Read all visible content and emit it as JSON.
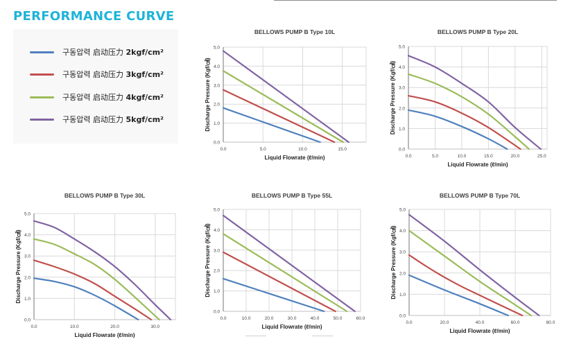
{
  "page": {
    "title": "PERFORMANCE CURVE"
  },
  "legend": {
    "items": [
      {
        "prefix": "구동압력 启动压力 ",
        "value": "2kgf/cm²",
        "color": "#4f81bd"
      },
      {
        "prefix": "구동압력 启动压力 ",
        "value": "3kgf/cm²",
        "color": "#c0504d"
      },
      {
        "prefix": "구동압력 启动压力 ",
        "value": "4kgf/cm²",
        "color": "#9bbb59"
      },
      {
        "prefix": "구동압력 启动压力 ",
        "value": "5kgf/cm²",
        "color": "#8064a2"
      }
    ]
  },
  "chart_data": [
    {
      "type": "line",
      "title": "BELLOWS PUMP B Type 10L",
      "xlabel": "Liquid Flowrate (ℓ/min)",
      "ylabel": "Discharge Pressure (Kgf/㎠)",
      "xlim": [
        0,
        18
      ],
      "ylim": [
        0,
        5
      ],
      "xticks": [
        0,
        5,
        10,
        15
      ],
      "xtick_labels": [
        "0.0",
        "5.0",
        "10.0",
        "15.0"
      ],
      "yticks": [
        0,
        1,
        2,
        3,
        4,
        5
      ],
      "ytick_labels": [
        "0.0",
        "1.0",
        "2.0",
        "3.0",
        "4.0",
        "5.0"
      ],
      "grid": true,
      "series": [
        {
          "name": "2kgf/cm²",
          "x": [
            0,
            12.2
          ],
          "y": [
            1.8,
            0
          ]
        },
        {
          "name": "3kgf/cm²",
          "x": [
            0,
            14.0
          ],
          "y": [
            2.75,
            0
          ]
        },
        {
          "name": "4kgf/cm²",
          "x": [
            0,
            15.1
          ],
          "y": [
            3.75,
            0
          ]
        },
        {
          "name": "5kgf/cm²",
          "x": [
            0,
            15.8
          ],
          "y": [
            4.8,
            0
          ]
        }
      ]
    },
    {
      "type": "line",
      "title": "BELLOWS PUMP B Type 20L",
      "xlabel": "Liquid Flowrate (ℓ/min)",
      "ylabel": "Discharge Pressure (Kgf/㎠)",
      "xlim": [
        0,
        26
      ],
      "ylim": [
        0,
        5
      ],
      "xticks": [
        0,
        5,
        10,
        15,
        20,
        25
      ],
      "xtick_labels": [
        "0.0",
        "5.0",
        "10.0",
        "15.0",
        "20.0",
        "25.0"
      ],
      "yticks": [
        0,
        1,
        2,
        3,
        4,
        5
      ],
      "ytick_labels": [
        "0.0",
        "1.0",
        "2.0",
        "3.0",
        "4.0",
        "5.0"
      ],
      "grid": true,
      "series": [
        {
          "name": "2kgf/cm²",
          "x": [
            0,
            5,
            10,
            15,
            18.5
          ],
          "y": [
            1.9,
            1.6,
            1.1,
            0.5,
            0
          ]
        },
        {
          "name": "3kgf/cm²",
          "x": [
            0,
            5,
            10,
            15,
            21
          ],
          "y": [
            2.6,
            2.3,
            1.75,
            1.05,
            0
          ]
        },
        {
          "name": "4kgf/cm²",
          "x": [
            0,
            5,
            10,
            15,
            20,
            22.6
          ],
          "y": [
            3.65,
            3.2,
            2.55,
            1.7,
            0.6,
            0
          ]
        },
        {
          "name": "5kgf/cm²",
          "x": [
            0,
            5,
            10,
            15,
            20,
            24.8
          ],
          "y": [
            4.55,
            4.0,
            3.2,
            2.3,
            1.05,
            0
          ]
        }
      ]
    },
    {
      "type": "line",
      "title": "BELLOWS PUMP B Type 30L",
      "xlabel": "Liquid Flowrate (ℓ/min)",
      "ylabel": "Discharge Pressure (Kgf/㎠)",
      "xlim": [
        0,
        35
      ],
      "ylim": [
        0,
        5
      ],
      "xticks": [
        0,
        10,
        20,
        30
      ],
      "xtick_labels": [
        "0.0",
        "10.0",
        "20.0",
        "30.0"
      ],
      "yticks": [
        0,
        1,
        2,
        3,
        4,
        5
      ],
      "ytick_labels": [
        "0.0",
        "1.0",
        "2.0",
        "3.0",
        "4.0",
        "5.0"
      ],
      "grid": true,
      "series": [
        {
          "name": "2kgf/cm²",
          "x": [
            0,
            5,
            10,
            15,
            20,
            25.8
          ],
          "y": [
            1.95,
            1.8,
            1.55,
            1.15,
            0.65,
            0
          ]
        },
        {
          "name": "3kgf/cm²",
          "x": [
            0,
            5,
            10,
            15,
            20,
            25,
            29
          ],
          "y": [
            2.8,
            2.5,
            2.15,
            1.7,
            1.1,
            0.5,
            0
          ]
        },
        {
          "name": "4kgf/cm²",
          "x": [
            0,
            5,
            10,
            15,
            20,
            25,
            31
          ],
          "y": [
            3.8,
            3.55,
            3.1,
            2.6,
            1.9,
            1.05,
            0
          ]
        },
        {
          "name": "5kgf/cm²",
          "x": [
            0,
            5,
            10,
            15,
            20,
            25,
            30,
            33.8
          ],
          "y": [
            4.65,
            4.35,
            3.8,
            3.2,
            2.5,
            1.65,
            0.7,
            0
          ]
        }
      ]
    },
    {
      "type": "line",
      "title": "BELLOWS PUMP B Type 55L",
      "xlabel": "Liquid Flowrate (ℓ/min)",
      "ylabel": "Discharge Pressure (Kgf/㎠)",
      "xlim": [
        0,
        60
      ],
      "ylim": [
        0,
        5
      ],
      "xticks": [
        0,
        10,
        20,
        30,
        40,
        50,
        60
      ],
      "xtick_labels": [
        "0.0",
        "10.0",
        "20.0",
        "30.0",
        "40.0",
        "50.0",
        "60.0"
      ],
      "yticks": [
        0,
        1,
        2,
        3,
        4,
        5
      ],
      "ytick_labels": [
        "0.0",
        "1.0",
        "2.0",
        "3.0",
        "4.0",
        "5.0"
      ],
      "grid": true,
      "series": [
        {
          "name": "2kgf/cm²",
          "x": [
            0,
            44
          ],
          "y": [
            1.6,
            0
          ]
        },
        {
          "name": "3kgf/cm²",
          "x": [
            0,
            49
          ],
          "y": [
            2.9,
            0
          ]
        },
        {
          "name": "4kgf/cm²",
          "x": [
            0,
            54
          ],
          "y": [
            3.8,
            0
          ]
        },
        {
          "name": "5kgf/cm²",
          "x": [
            0,
            57.5
          ],
          "y": [
            4.7,
            0
          ]
        }
      ]
    },
    {
      "type": "line",
      "title": "BELLOWS PUMP B Type 70L",
      "xlabel": "Liquid Flowrate (ℓ/min)",
      "ylabel": "Discharge Pressure (Kgf/㎠)",
      "xlim": [
        0,
        80
      ],
      "ylim": [
        0,
        5
      ],
      "xticks": [
        0,
        20,
        40,
        60,
        80
      ],
      "xtick_labels": [
        "0.0",
        "20.0",
        "40.0",
        "60.0",
        "80.0"
      ],
      "yticks": [
        0,
        1,
        2,
        3,
        4,
        5
      ],
      "ytick_labels": [
        "0.0",
        "1.0",
        "2.0",
        "3.0",
        "4.0",
        "5.0"
      ],
      "grid": true,
      "series": [
        {
          "name": "2kgf/cm²",
          "x": [
            0,
            20,
            40,
            56
          ],
          "y": [
            1.9,
            1.2,
            0.55,
            0
          ]
        },
        {
          "name": "3kgf/cm²",
          "x": [
            0,
            10,
            20,
            30,
            40,
            50,
            64
          ],
          "y": [
            2.85,
            2.3,
            1.8,
            1.35,
            0.95,
            0.55,
            0
          ]
        },
        {
          "name": "4kgf/cm²",
          "x": [
            0,
            20,
            40,
            60,
            69
          ],
          "y": [
            4.0,
            2.8,
            1.6,
            0.5,
            0
          ]
        },
        {
          "name": "5kgf/cm²",
          "x": [
            0,
            20,
            40,
            60,
            73.5
          ],
          "y": [
            4.75,
            3.5,
            2.15,
            0.85,
            0
          ]
        }
      ]
    }
  ]
}
